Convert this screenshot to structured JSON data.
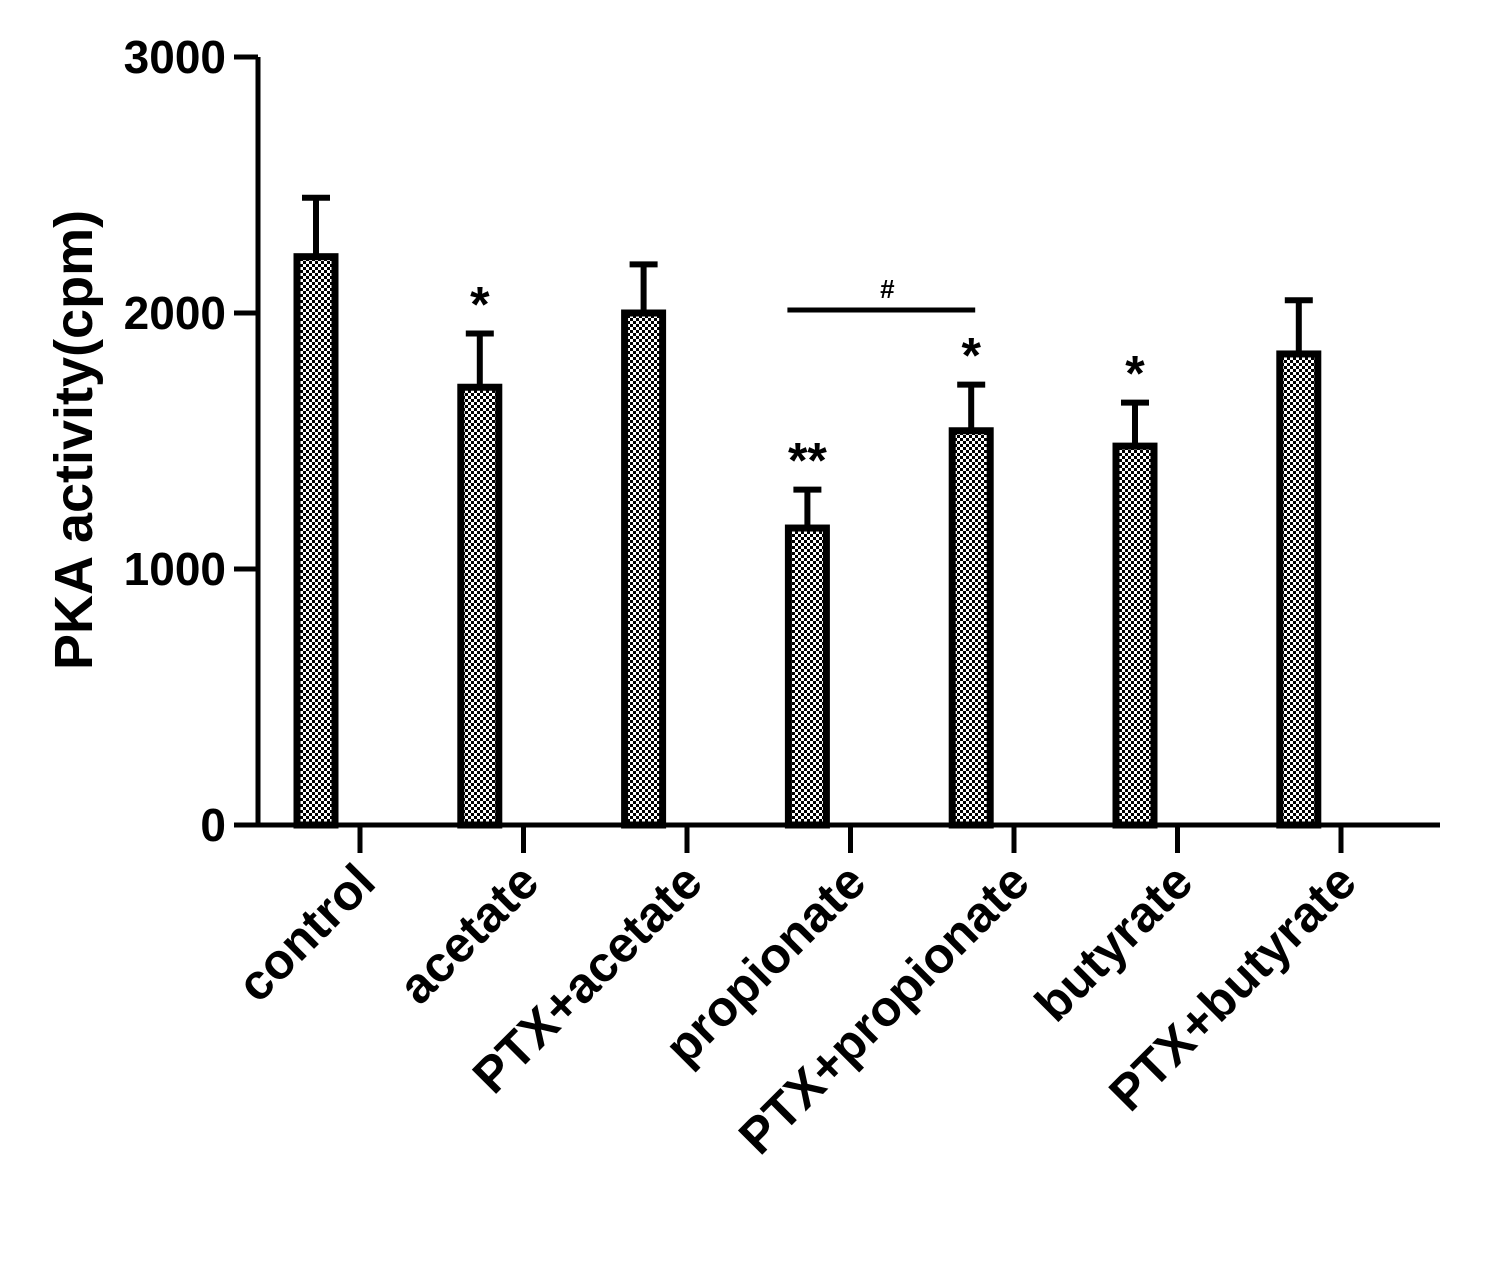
{
  "chart_data": {
    "type": "bar",
    "title": "",
    "xlabel": "",
    "ylabel": "PKA activity(cpm)",
    "ylim": [
      0,
      3000
    ],
    "yticks": [
      0,
      1000,
      2000,
      3000
    ],
    "ytick_labels": [
      "0",
      "1000",
      "2000",
      "3000"
    ],
    "categories": [
      "control",
      "acetate",
      "PTX+acetate",
      "propionate",
      "PTX+propionate",
      "butyrate",
      "PTX+butyrate"
    ],
    "values": [
      2220,
      1710,
      2000,
      1160,
      1540,
      1480,
      1840
    ],
    "error_upper": [
      230,
      210,
      190,
      150,
      180,
      170,
      210
    ],
    "significance": [
      "",
      "*",
      "",
      "**",
      "*",
      "*",
      ""
    ],
    "comparison": {
      "from": "propionate",
      "to": "PTX+propionate",
      "label": "#"
    },
    "bar_fill": "checkered",
    "colors": {
      "bar_border": "#000000",
      "bar_pattern_dark": "#000000",
      "bar_pattern_light": "#ffffff"
    },
    "grid": false,
    "legend": "none"
  }
}
